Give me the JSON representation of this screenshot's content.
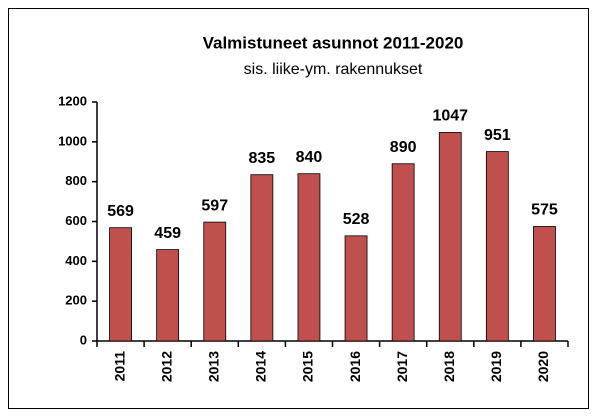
{
  "chart_data": {
    "type": "bar",
    "title": "Valmistuneet asunnot 2011-2020",
    "subtitle": "sis. liike-ym. rakennukset",
    "categories": [
      "2011",
      "2012",
      "2013",
      "2014",
      "2015",
      "2016",
      "2017",
      "2018",
      "2019",
      "2020"
    ],
    "values": [
      569,
      459,
      597,
      835,
      840,
      528,
      890,
      1047,
      951,
      575
    ],
    "color": "#c0504d",
    "ylim": [
      0,
      1200
    ],
    "yticks": [
      0,
      200,
      400,
      600,
      800,
      1000,
      1200
    ],
    "grid": false
  }
}
